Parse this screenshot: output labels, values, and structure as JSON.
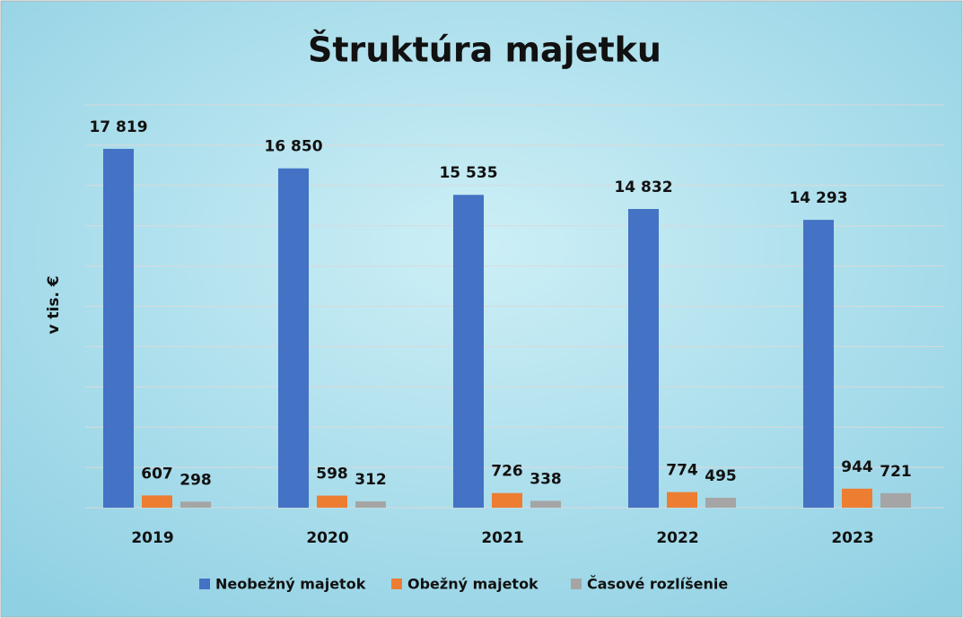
{
  "chart_data": {
    "type": "bar",
    "title": "Štruktúra majetku",
    "y_label": "v tis. €",
    "categories": [
      "2019",
      "2020",
      "2021",
      "2022",
      "2023"
    ],
    "series": [
      {
        "name": "Neobežný majetok",
        "color": "#4472c4",
        "values": [
          17819,
          16850,
          15535,
          14832,
          14293
        ],
        "value_labels": [
          "17 819",
          "16 850",
          "15 535",
          "14 832",
          "14 293"
        ]
      },
      {
        "name": "Obežný majetok",
        "color": "#ed7d31",
        "values": [
          607,
          598,
          726,
          774,
          944
        ]
      },
      {
        "name": "Časové rozlíšenie",
        "color": "#a5a5a5",
        "values": [
          298,
          312,
          338,
          495,
          721
        ]
      }
    ],
    "ylim": [
      0,
      20000
    ],
    "yticks": [
      0,
      2000,
      4000,
      6000,
      8000,
      10000,
      12000,
      14000,
      16000,
      18000,
      20000
    ],
    "grid": true,
    "legend": "bottom"
  }
}
